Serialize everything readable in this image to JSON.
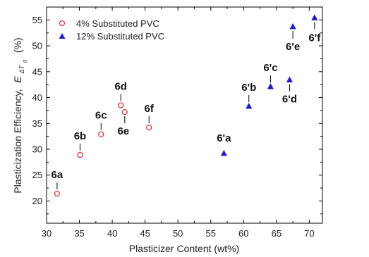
{
  "chart_data": {
    "type": "scatter",
    "xlabel": "Plasticizer Content (wt%)",
    "ylabel_main": "Plasticization Efficiency,",
    "ylabel_symbol": "E",
    "ylabel_subscript": "ΔT",
    "ylabel_subsubscript": "g",
    "ylabel_unit": "(%)",
    "xlim": [
      30,
      72
    ],
    "ylim": [
      15.7,
      57.5
    ],
    "xticks": [
      30,
      35,
      40,
      45,
      50,
      55,
      60,
      65,
      70
    ],
    "yticks": [
      20,
      25,
      30,
      35,
      40,
      45,
      50,
      55
    ],
    "grid": false,
    "legend_position": "top-left",
    "series": [
      {
        "name": "4% Substituted PVC",
        "marker": "open-circle",
        "color": "#e8262a",
        "points": [
          {
            "x": 31.6,
            "y": 21.4,
            "label": "6a"
          },
          {
            "x": 35.1,
            "y": 28.9,
            "label": "6b"
          },
          {
            "x": 38.3,
            "y": 32.9,
            "label": "6c"
          },
          {
            "x": 41.3,
            "y": 38.5,
            "label": "6d"
          },
          {
            "x": 41.9,
            "y": 37.2,
            "label": "6e"
          },
          {
            "x": 45.6,
            "y": 34.2,
            "label": "6f"
          }
        ]
      },
      {
        "name": "12% Substituted PVC",
        "marker": "filled-triangle",
        "color": "#1a1adb",
        "points": [
          {
            "x": 57.0,
            "y": 29.2,
            "label": "6'a"
          },
          {
            "x": 60.8,
            "y": 38.3,
            "label": "6'b"
          },
          {
            "x": 64.1,
            "y": 42.1,
            "label": "6'c"
          },
          {
            "x": 67.0,
            "y": 43.4,
            "label": "6'd"
          },
          {
            "x": 67.5,
            "y": 53.7,
            "label": "6'e"
          },
          {
            "x": 70.8,
            "y": 55.4,
            "label": "6'f"
          }
        ]
      }
    ]
  }
}
